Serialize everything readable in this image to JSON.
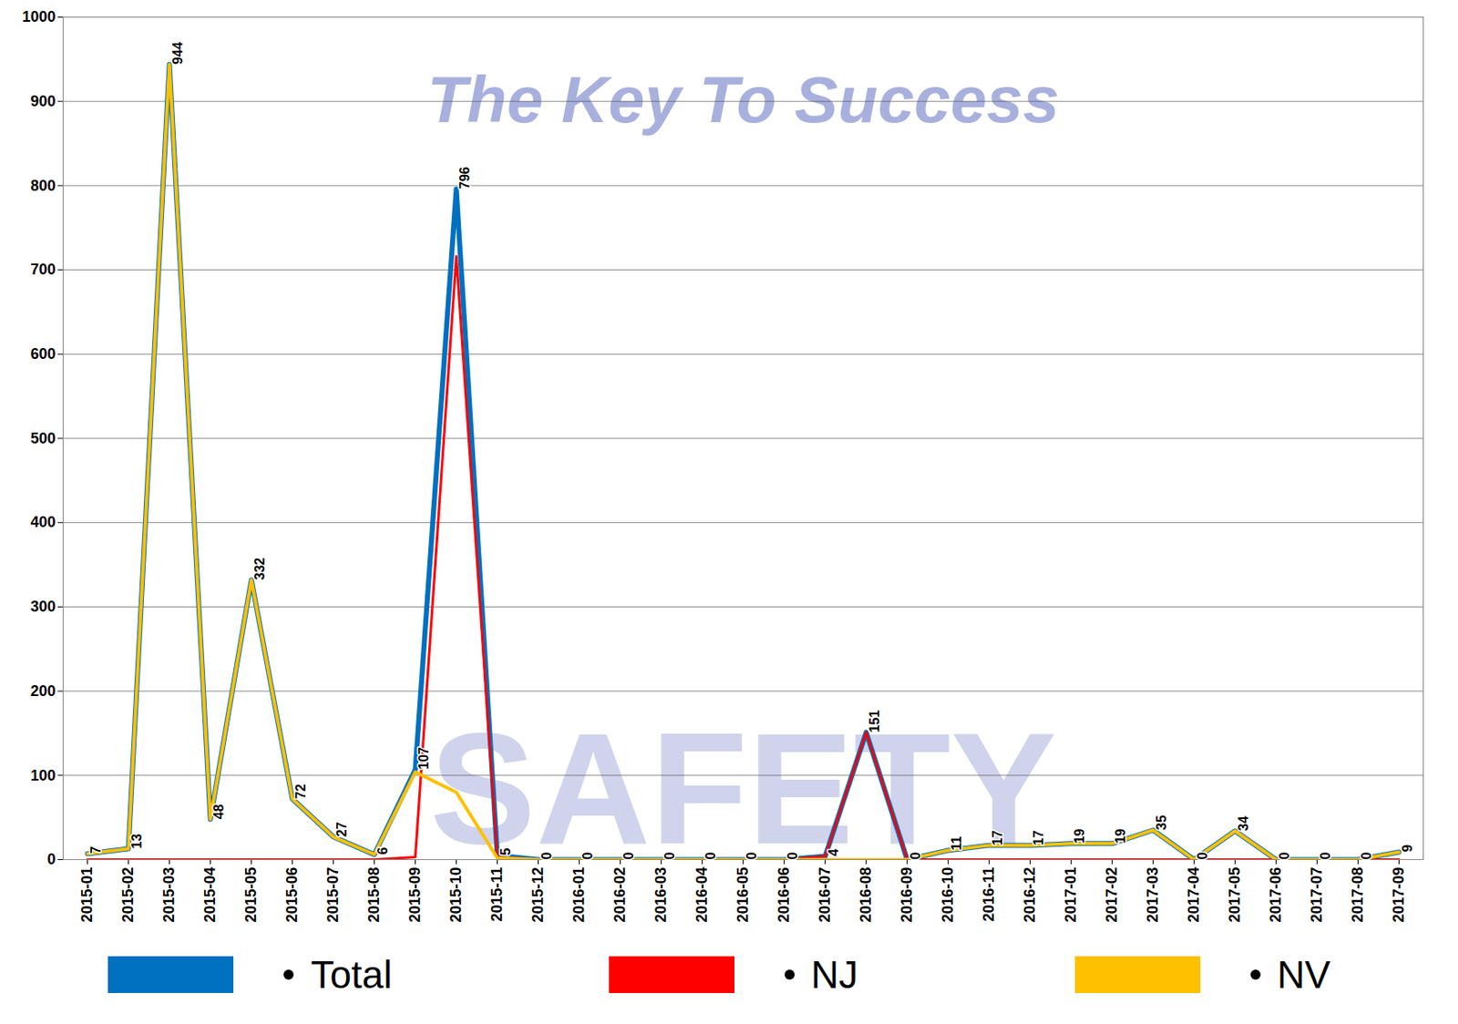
{
  "chart_data": {
    "type": "line",
    "categories": [
      "2015-01",
      "2015-02",
      "2015-03",
      "2015-04",
      "2015-05",
      "2015-06",
      "2015-07",
      "2015-08",
      "2015-09",
      "2015-10",
      "2015-11",
      "2015-12",
      "2016-01",
      "2016-02",
      "2016-03",
      "2016-04",
      "2016-05",
      "2016-06",
      "2016-07",
      "2016-08",
      "2016-09",
      "2016-10",
      "2016-11",
      "2016-12",
      "2017-01",
      "2017-02",
      "2017-03",
      "2017-04",
      "2017-05",
      "2017-06",
      "2017-07",
      "2017-08",
      "2017-09"
    ],
    "series": [
      {
        "name": "Total",
        "color": "#0070c0",
        "data_labels": true,
        "values": [
          7,
          13,
          944,
          48,
          332,
          72,
          27,
          6,
          107,
          796,
          5,
          0,
          0,
          0,
          0,
          0,
          0,
          0,
          4,
          151,
          0,
          11,
          17,
          17,
          19,
          19,
          35,
          0,
          34,
          0,
          0,
          0,
          9
        ]
      },
      {
        "name": "NJ",
        "color": "#ff0000",
        "values": [
          0,
          0,
          0,
          0,
          0,
          0,
          0,
          0,
          3,
          716,
          3,
          0,
          0,
          0,
          0,
          0,
          0,
          0,
          4,
          151,
          0,
          0,
          0,
          0,
          0,
          0,
          0,
          0,
          0,
          0,
          0,
          0,
          0
        ]
      },
      {
        "name": "NV",
        "color": "#ffc000",
        "values": [
          7,
          13,
          944,
          48,
          332,
          72,
          27,
          6,
          104,
          80,
          2,
          0,
          0,
          0,
          0,
          0,
          0,
          0,
          0,
          0,
          0,
          11,
          17,
          17,
          19,
          19,
          35,
          0,
          34,
          0,
          0,
          0,
          9
        ]
      }
    ],
    "ylim": [
      0,
      1000
    ],
    "yticks": [
      0,
      100,
      200,
      300,
      400,
      500,
      600,
      700,
      800,
      900,
      1000
    ],
    "grid": true,
    "legend": "bottom",
    "annotations": [
      "The Key To Success",
      "SAFETY"
    ]
  }
}
